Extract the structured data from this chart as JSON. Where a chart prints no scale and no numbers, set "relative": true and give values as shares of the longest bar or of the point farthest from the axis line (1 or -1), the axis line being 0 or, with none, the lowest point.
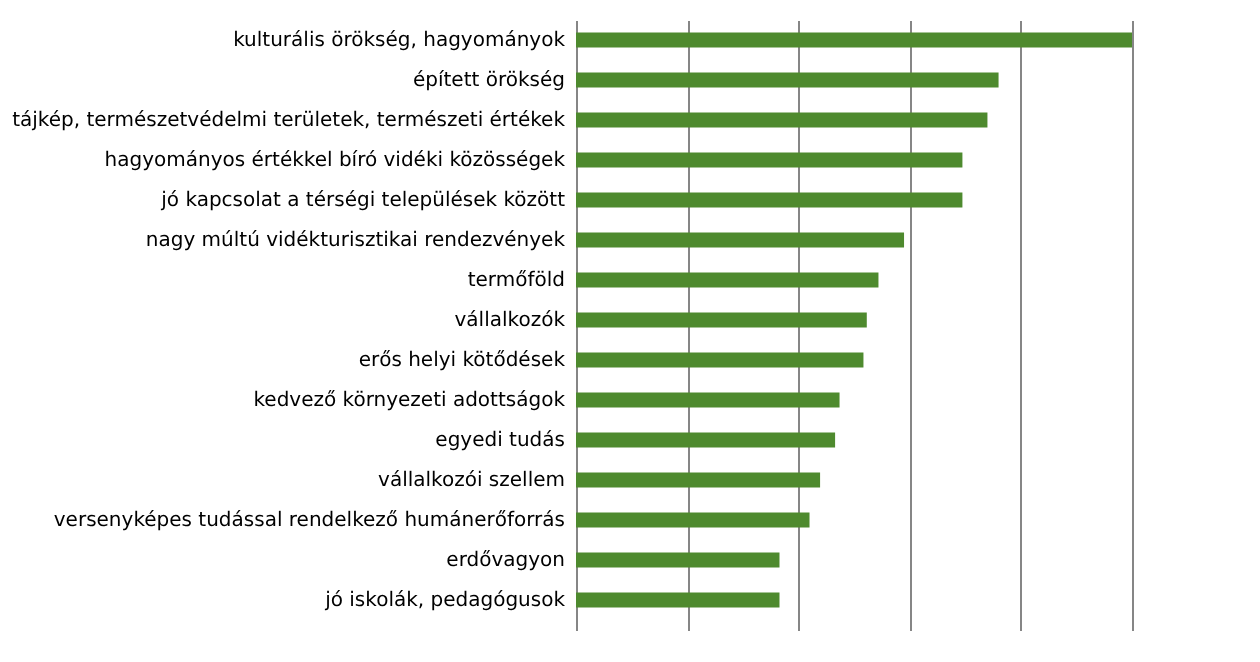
{
  "chart_data": {
    "type": "bar",
    "orientation": "horizontal",
    "relative": true,
    "grid": "x",
    "color": "#4e8a2e",
    "categories": [
      "kulturális örökség, hagyományok",
      "épített örökség",
      "tájkép, természetvédelmi területek, természeti értékek",
      "hagyományos értékkel bíró vidéki közösségek",
      "jó kapcsolat a térségi települések között",
      "nagy múltú vidékturisztikai rendezvények",
      "termőföld",
      "vállalkozók",
      "erős helyi kötődések",
      "kedvező környezeti adottságok",
      "egyedi tudás",
      "vállalkozói szellem",
      "versenyképes tudással rendelkező humánerőforrás",
      "erdővagyon",
      "jó iskolák, pedagógusok"
    ],
    "values": [
      1,
      0.76,
      0.74,
      0.695,
      0.695,
      0.59,
      0.544,
      0.523,
      0.517,
      0.474,
      0.466,
      0.439,
      0.42,
      0.366,
      0.366
    ]
  }
}
